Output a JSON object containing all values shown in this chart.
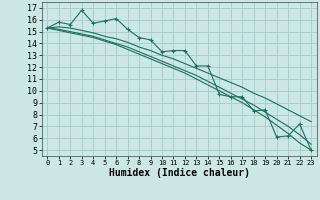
{
  "xlabel": "Humidex (Indice chaleur)",
  "bg_color": "#cce8e4",
  "grid_color": "#aacfcc",
  "line_color": "#1a6e64",
  "xlim": [
    -0.5,
    23.5
  ],
  "ylim": [
    4.5,
    17.5
  ],
  "yticks": [
    5,
    6,
    7,
    8,
    9,
    10,
    11,
    12,
    13,
    14,
    15,
    16,
    17
  ],
  "xticks": [
    0,
    1,
    2,
    3,
    4,
    5,
    6,
    7,
    8,
    9,
    10,
    11,
    12,
    13,
    14,
    15,
    16,
    17,
    18,
    19,
    20,
    21,
    22,
    23
  ],
  "series": [
    {
      "x": [
        0,
        1,
        2,
        3,
        4,
        5,
        6,
        7,
        8,
        9,
        10,
        11,
        12,
        13,
        14,
        15,
        16,
        17,
        18,
        19,
        20,
        21,
        22,
        23
      ],
      "y": [
        15.3,
        15.8,
        15.6,
        16.8,
        15.7,
        15.9,
        16.1,
        15.2,
        14.5,
        14.3,
        13.3,
        13.4,
        13.4,
        12.1,
        12.1,
        9.7,
        9.5,
        9.5,
        8.3,
        8.4,
        6.1,
        6.2,
        7.2,
        5.0
      ],
      "marker": true
    },
    {
      "x": [
        0,
        1,
        2,
        3,
        4,
        5,
        6,
        7,
        8,
        9,
        10,
        11,
        12,
        13,
        14,
        15,
        16,
        17,
        18,
        19,
        20,
        21,
        22,
        23
      ],
      "y": [
        15.3,
        15.4,
        15.3,
        15.1,
        14.9,
        14.6,
        14.4,
        14.1,
        13.7,
        13.4,
        13.0,
        12.7,
        12.3,
        11.9,
        11.5,
        11.1,
        10.7,
        10.3,
        9.8,
        9.4,
        8.9,
        8.4,
        7.9,
        7.4
      ],
      "marker": false
    },
    {
      "x": [
        0,
        1,
        2,
        3,
        4,
        5,
        6,
        7,
        8,
        9,
        10,
        11,
        12,
        13,
        14,
        15,
        16,
        17,
        18,
        19,
        20,
        21,
        22,
        23
      ],
      "y": [
        15.3,
        15.2,
        15.0,
        14.8,
        14.6,
        14.3,
        14.0,
        13.7,
        13.3,
        12.9,
        12.5,
        12.1,
        11.7,
        11.3,
        10.8,
        10.3,
        9.8,
        9.3,
        8.8,
        8.2,
        7.6,
        7.0,
        6.3,
        5.5
      ],
      "marker": false
    },
    {
      "x": [
        0,
        1,
        2,
        3,
        4,
        5,
        6,
        7,
        8,
        9,
        10,
        11,
        12,
        13,
        14,
        15,
        16,
        17,
        18,
        19,
        20,
        21,
        22,
        23
      ],
      "y": [
        15.3,
        15.1,
        14.9,
        14.7,
        14.5,
        14.2,
        13.9,
        13.5,
        13.1,
        12.7,
        12.3,
        11.9,
        11.5,
        11.0,
        10.5,
        10.0,
        9.5,
        9.0,
        8.4,
        7.8,
        7.1,
        6.4,
        5.6,
        5.0
      ],
      "marker": false
    }
  ]
}
